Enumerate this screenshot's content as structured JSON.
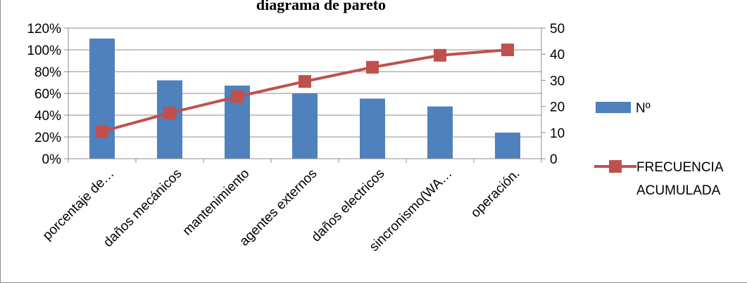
{
  "chart_data": {
    "type": "bar",
    "title": "diagrama de pareto",
    "categories": [
      "porcentaje de…",
      "daños mecánicos",
      "mantenimiento",
      "agentes externos",
      "daños electricos",
      "sincronismo(WA…",
      "operación."
    ],
    "series": [
      {
        "name": "Nº",
        "type": "bar",
        "axis": "right",
        "color": "#4f81bd",
        "values": [
          46,
          30,
          28,
          25,
          23,
          20,
          10
        ]
      },
      {
        "name": "FRECUENCIA ACUMULADA",
        "type": "line",
        "axis": "left",
        "color": "#c0504d",
        "marker": "square",
        "values": [
          0.25,
          0.42,
          0.57,
          0.71,
          0.84,
          0.95,
          1.0
        ]
      }
    ],
    "y_left": {
      "ticks": [
        "0%",
        "20%",
        "40%",
        "60%",
        "80%",
        "100%",
        "120%"
      ],
      "ylim": [
        0,
        1.2
      ]
    },
    "y_right": {
      "ticks": [
        "0",
        "10",
        "20",
        "30",
        "40",
        "50"
      ],
      "ylim": [
        0,
        50
      ]
    },
    "grid": true,
    "legend_position": "right"
  }
}
